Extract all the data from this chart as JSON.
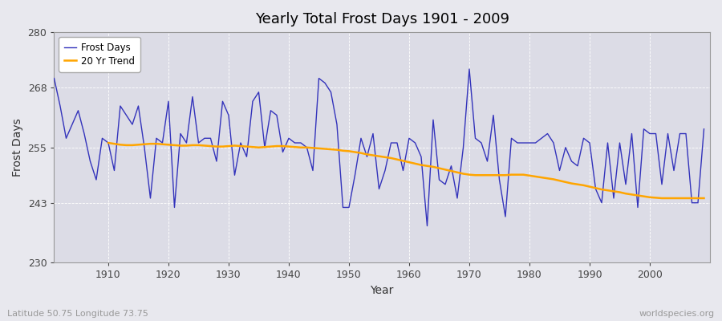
{
  "title": "Yearly Total Frost Days 1901 - 2009",
  "xlabel": "Year",
  "ylabel": "Frost Days",
  "footnote_left": "Latitude 50.75 Longitude 73.75",
  "footnote_right": "worldspecies.org",
  "legend_labels": [
    "Frost Days",
    "20 Yr Trend"
  ],
  "line_color": "#3333bb",
  "trend_color": "#FFA500",
  "fig_bg_color": "#e8e8ee",
  "plot_bg_color": "#dcdce6",
  "ylim": [
    230,
    280
  ],
  "yticks": [
    230,
    243,
    255,
    268,
    280
  ],
  "xlim": [
    1901,
    2010
  ],
  "xticks": [
    1910,
    1920,
    1930,
    1940,
    1950,
    1960,
    1970,
    1980,
    1990,
    2000
  ],
  "years": [
    1901,
    1902,
    1903,
    1904,
    1905,
    1906,
    1907,
    1908,
    1909,
    1910,
    1911,
    1912,
    1913,
    1914,
    1915,
    1916,
    1917,
    1918,
    1919,
    1920,
    1921,
    1922,
    1923,
    1924,
    1925,
    1926,
    1927,
    1928,
    1929,
    1930,
    1931,
    1932,
    1933,
    1934,
    1935,
    1936,
    1937,
    1938,
    1939,
    1940,
    1941,
    1942,
    1943,
    1944,
    1945,
    1946,
    1947,
    1948,
    1949,
    1950,
    1951,
    1952,
    1953,
    1954,
    1955,
    1956,
    1957,
    1958,
    1959,
    1960,
    1961,
    1962,
    1963,
    1964,
    1965,
    1966,
    1967,
    1968,
    1969,
    1970,
    1971,
    1972,
    1973,
    1974,
    1975,
    1976,
    1977,
    1978,
    1979,
    1980,
    1981,
    1982,
    1983,
    1984,
    1985,
    1986,
    1987,
    1988,
    1989,
    1990,
    1991,
    1992,
    1993,
    1994,
    1995,
    1996,
    1997,
    1998,
    1999,
    2000,
    2001,
    2002,
    2003,
    2004,
    2005,
    2006,
    2007,
    2008,
    2009
  ],
  "frost_days": [
    270,
    264,
    257,
    260,
    263,
    258,
    252,
    248,
    257,
    256,
    250,
    264,
    262,
    260,
    264,
    255,
    244,
    257,
    256,
    265,
    242,
    258,
    256,
    266,
    256,
    257,
    257,
    252,
    265,
    262,
    249,
    256,
    253,
    265,
    267,
    255,
    263,
    262,
    254,
    257,
    256,
    256,
    255,
    250,
    270,
    269,
    267,
    260,
    242,
    242,
    249,
    257,
    253,
    258,
    246,
    250,
    256,
    256,
    250,
    257,
    256,
    253,
    238,
    261,
    248,
    247,
    251,
    244,
    255,
    272,
    257,
    256,
    252,
    262,
    248,
    240,
    257,
    256,
    256,
    256,
    256,
    257,
    258,
    256,
    250,
    255,
    252,
    251,
    257,
    256,
    246,
    243,
    256,
    244,
    256,
    247,
    258,
    242,
    259,
    258,
    258,
    247,
    258,
    250,
    258,
    258,
    243,
    243,
    259
  ],
  "trend_years": [
    1910,
    1911,
    1912,
    1913,
    1914,
    1915,
    1916,
    1917,
    1918,
    1919,
    1920,
    1921,
    1922,
    1923,
    1924,
    1925,
    1926,
    1927,
    1928,
    1929,
    1930,
    1931,
    1932,
    1933,
    1934,
    1935,
    1936,
    1937,
    1938,
    1939,
    1940,
    1941,
    1942,
    1943,
    1944,
    1945,
    1946,
    1947,
    1948,
    1949,
    1950,
    1951,
    1952,
    1953,
    1954,
    1955,
    1956,
    1957,
    1958,
    1959,
    1960,
    1961,
    1962,
    1963,
    1964,
    1965,
    1966,
    1967,
    1968,
    1969,
    1970,
    1971,
    1972,
    1973,
    1974,
    1975,
    1976,
    1977,
    1978,
    1979,
    1980,
    1981,
    1982,
    1983,
    1984,
    1985,
    1986,
    1987,
    1988,
    1989,
    1990,
    1991,
    1992,
    1993,
    1994,
    1995,
    1996,
    1997,
    1998,
    1999,
    2000,
    2001,
    2002,
    2003,
    2004,
    2005,
    2006,
    2007,
    2008,
    2009
  ],
  "trend_vals": [
    256.0,
    255.8,
    255.6,
    255.5,
    255.5,
    255.6,
    255.7,
    255.8,
    255.8,
    255.7,
    255.6,
    255.5,
    255.4,
    255.4,
    255.5,
    255.5,
    255.4,
    255.3,
    255.2,
    255.2,
    255.3,
    255.4,
    255.3,
    255.2,
    255.1,
    255.0,
    255.1,
    255.2,
    255.3,
    255.3,
    255.2,
    255.1,
    255.0,
    255.0,
    254.9,
    254.8,
    254.7,
    254.6,
    254.5,
    254.3,
    254.2,
    254.0,
    253.8,
    253.5,
    253.3,
    253.1,
    252.9,
    252.7,
    252.4,
    252.1,
    251.8,
    251.5,
    251.2,
    251.0,
    250.8,
    250.5,
    250.2,
    249.9,
    249.6,
    249.3,
    249.1,
    249.0,
    249.0,
    249.0,
    249.0,
    249.0,
    249.0,
    249.1,
    249.1,
    249.1,
    248.9,
    248.7,
    248.5,
    248.3,
    248.1,
    247.8,
    247.5,
    247.2,
    247.0,
    246.8,
    246.5,
    246.2,
    245.9,
    245.7,
    245.5,
    245.3,
    245.0,
    244.8,
    244.6,
    244.4,
    244.2,
    244.1,
    244.0,
    244.0,
    244.0,
    244.0,
    244.0,
    244.0,
    244.0,
    244.0
  ]
}
